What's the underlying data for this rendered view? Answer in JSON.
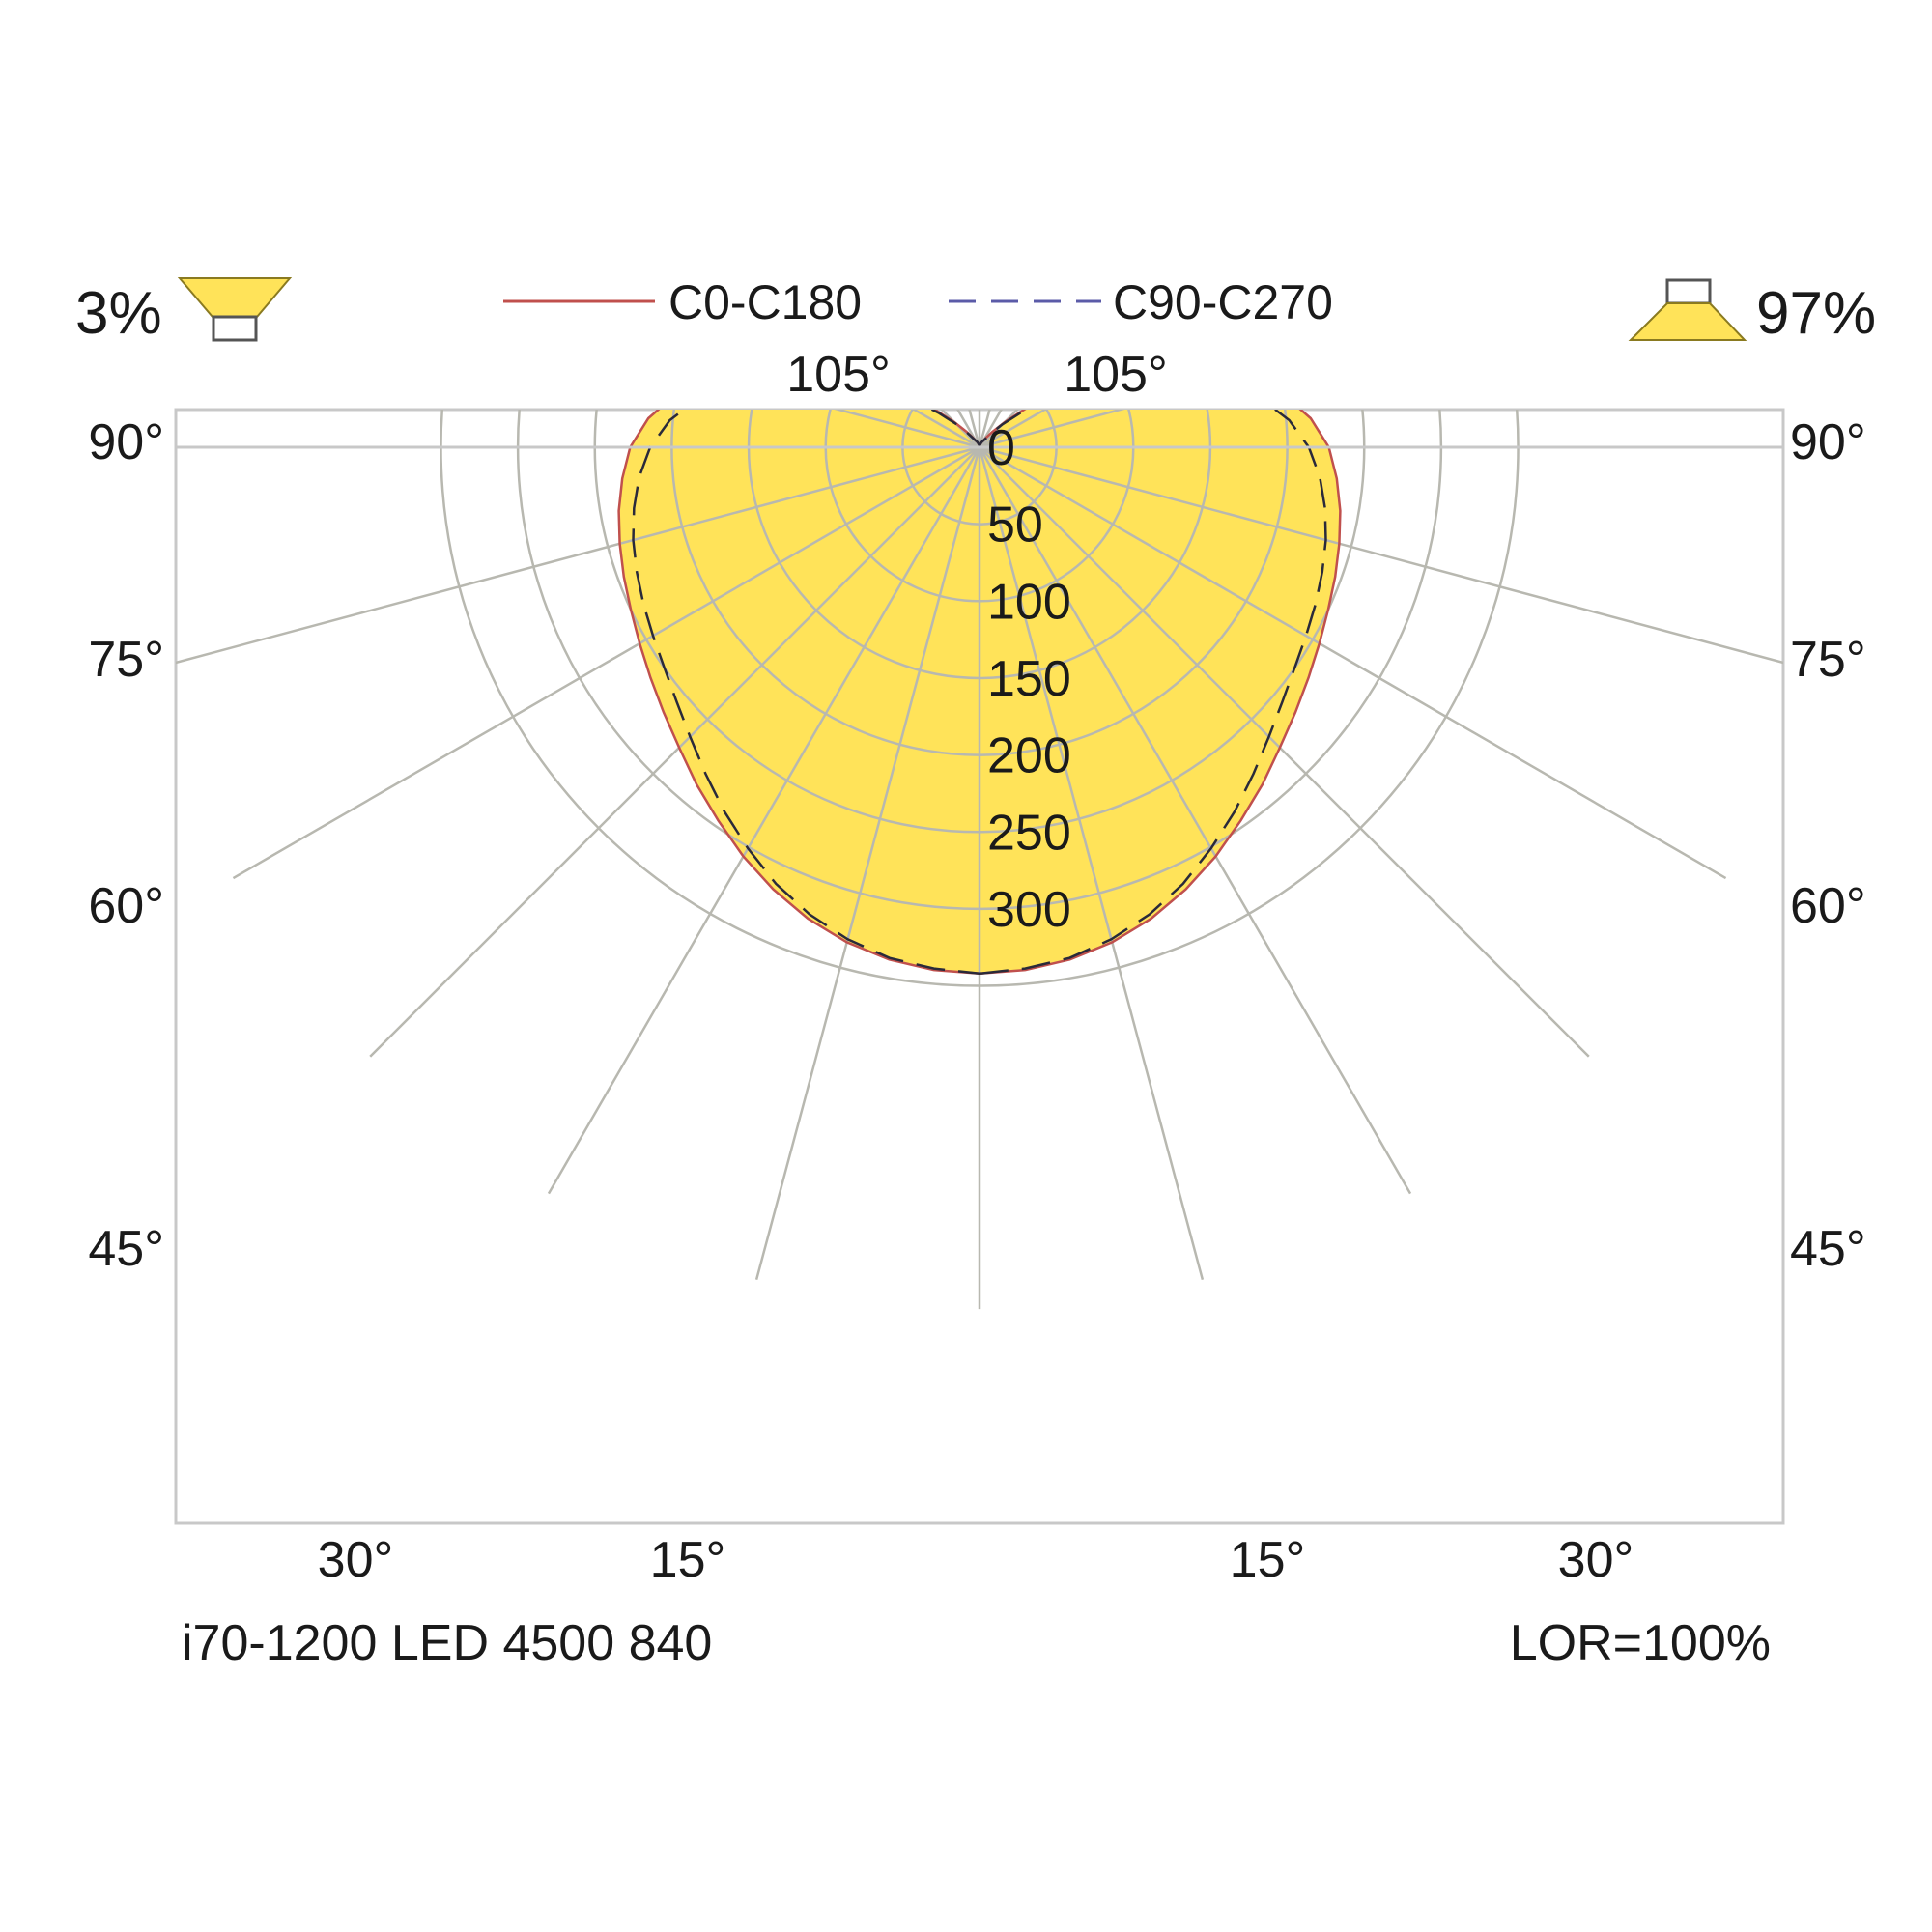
{
  "chart_data": {
    "type": "polar",
    "title": "",
    "subtitle": "",
    "luminaire_name": "i70-1200 LED 4500 840",
    "lor_label": "LOR=100%",
    "upward_share": "3%",
    "downward_share": "97%",
    "radial_axis": {
      "range": [
        0,
        350
      ],
      "ticks": [
        0,
        50,
        100,
        150,
        200,
        250,
        300
      ],
      "tick_labels": [
        "0",
        "50",
        "100",
        "150",
        "200",
        "250",
        "300"
      ]
    },
    "angle_labels": {
      "bottom": [
        "30°",
        "15°",
        "15°",
        "30°"
      ],
      "sides": [
        "90°",
        "75°",
        "60°",
        "45°"
      ],
      "top": [
        "105°",
        "105°"
      ]
    },
    "series": [
      {
        "name": "C0-C180",
        "color": "#c0504d",
        "style": "solid",
        "angles": [
          0,
          5,
          10,
          15,
          20,
          25,
          30,
          35,
          40,
          45,
          50,
          55,
          60,
          65,
          70,
          75,
          80,
          85,
          90,
          95,
          100,
          105,
          110,
          115,
          120,
          125,
          130,
          135,
          140,
          145,
          150,
          155,
          160,
          165,
          170,
          175,
          180
        ],
        "values": [
          342,
          341,
          338,
          333,
          326,
          317,
          307,
          296,
          286,
          276,
          268,
          261,
          255,
          250,
          246,
          242,
          238,
          233,
          227,
          216,
          200,
          177,
          149,
          119,
          89,
          61,
          39,
          23,
          13,
          8,
          5,
          4,
          3,
          2,
          2,
          1,
          1
        ]
      },
      {
        "name": "C90-C270",
        "color": "#5b5ba8",
        "style": "dashed",
        "angles": [
          0,
          5,
          10,
          15,
          20,
          25,
          30,
          35,
          40,
          45,
          50,
          55,
          60,
          65,
          70,
          75,
          80,
          85,
          90,
          95,
          100,
          105,
          110,
          115,
          120,
          125,
          130,
          135,
          140,
          145,
          150,
          155,
          160,
          165,
          170,
          175,
          180
        ],
        "values": [
          342,
          340,
          337,
          331,
          323,
          313,
          301,
          289,
          277,
          266,
          257,
          250,
          245,
          241,
          237,
          233,
          228,
          222,
          214,
          202,
          185,
          163,
          137,
          109,
          81,
          55,
          35,
          21,
          12,
          7,
          5,
          4,
          3,
          2,
          2,
          1,
          1
        ]
      }
    ],
    "fill_color": "#ffe359",
    "grid": true
  }
}
